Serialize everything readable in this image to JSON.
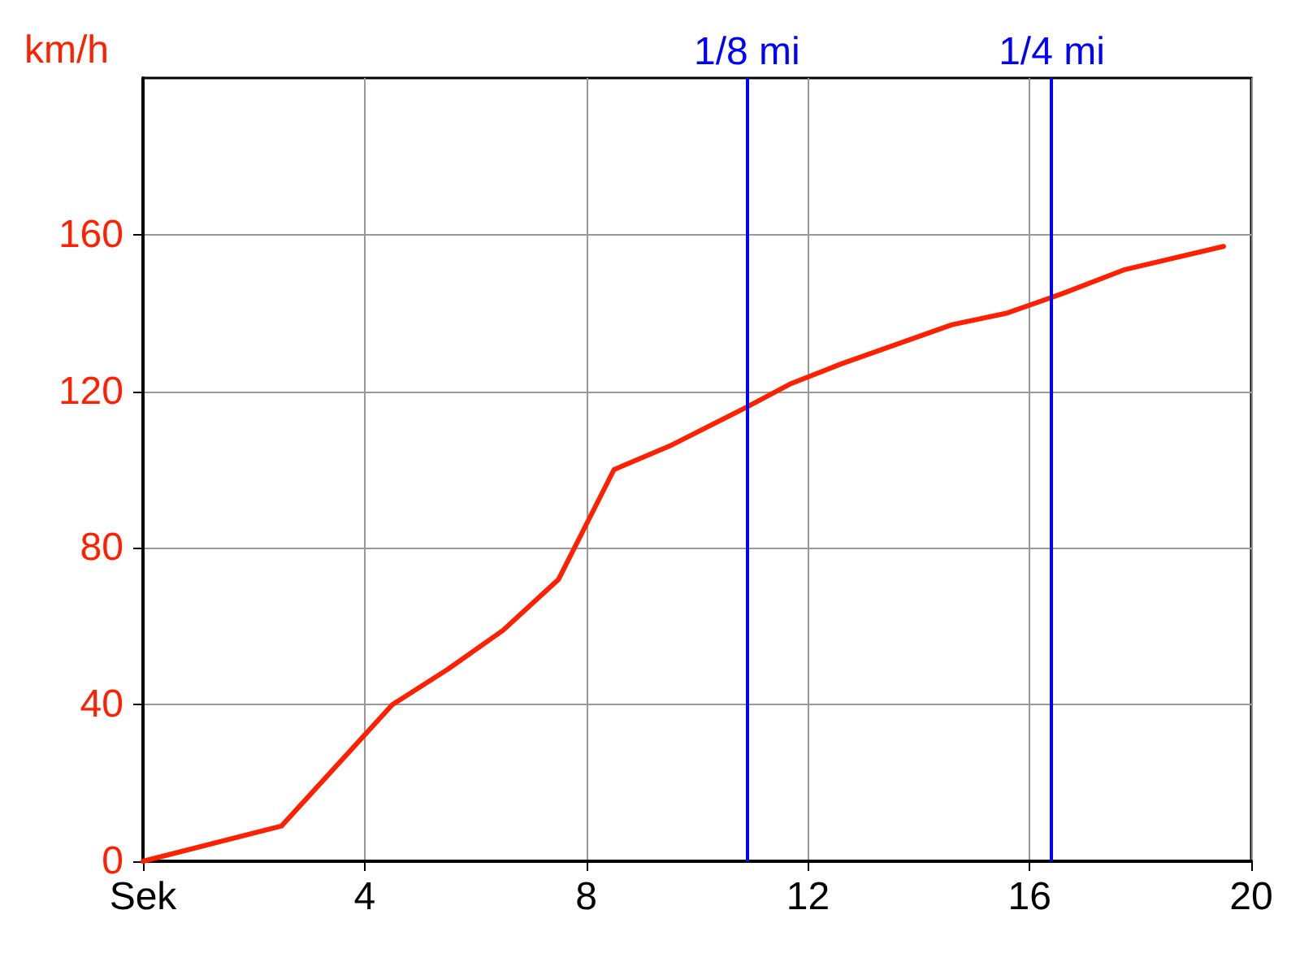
{
  "chart_data": {
    "type": "line",
    "ylabel": "km/h",
    "x": [
      0,
      2.5,
      4.5,
      5.5,
      6.5,
      7.5,
      8.5,
      9.5,
      10.9,
      11.7,
      12.6,
      14.6,
      15.6,
      16.6,
      17.7,
      19.5
    ],
    "series": [
      {
        "color": "#ff2000",
        "values": [
          0,
          9,
          40,
          49,
          59,
          72,
          100,
          106,
          116,
          122,
          127,
          137,
          140,
          145,
          151,
          157
        ]
      }
    ],
    "xlim": [
      0,
      20
    ],
    "xticks": [
      {
        "value": 0,
        "label": "Sek"
      },
      4,
      8,
      12,
      16,
      20
    ],
    "ylim": [
      0,
      200
    ],
    "yticks": [
      0,
      40,
      80,
      120,
      160
    ],
    "grid": true,
    "marker": "none",
    "line_style": "solid",
    "ref_lines": [
      {
        "axis": "x",
        "value": 10.9,
        "label": "1/8 mi",
        "color": "#0000ff"
      },
      {
        "axis": "x",
        "value": 16.4,
        "label": "1/4 mi",
        "color": "#0000ff"
      }
    ]
  }
}
